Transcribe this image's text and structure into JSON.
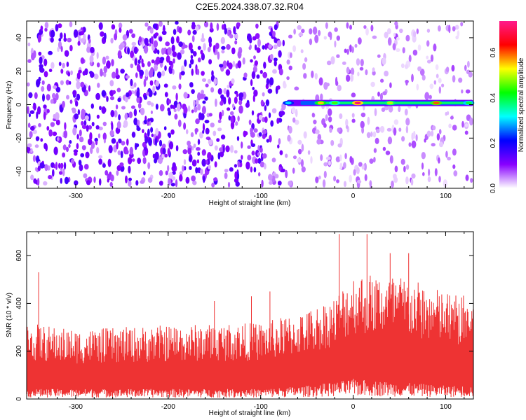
{
  "title": "C2E5.2024.338.07.32.R04",
  "chart_data": [
    {
      "type": "heatmap",
      "xlabel": "Height of straight line (km)",
      "ylabel": "Frequency (Hz)",
      "xlim": [
        -353,
        130
      ],
      "ylim": [
        -50,
        50
      ],
      "x_ticks": [
        -300,
        -200,
        -100,
        0,
        100
      ],
      "x_tick_labels": [
        "-300",
        "-200",
        "-100",
        "0",
        "100"
      ],
      "y_ticks": [
        -40,
        -20,
        0,
        20,
        40
      ],
      "y_tick_labels": [
        "-40",
        "-20",
        "0",
        "20",
        "40"
      ],
      "colorbar": {
        "label": "Normalized spectral amplitude",
        "range": [
          0,
          0.74
        ],
        "ticks": [
          0,
          0.2,
          0.4,
          0.6
        ],
        "tick_labels": [
          "0.0",
          "0.2",
          "0.4",
          "0.6"
        ],
        "colors": [
          "#ffffff",
          "#8800ff",
          "#0000ff",
          "#00ffff",
          "#00ff00",
          "#ffff00",
          "#ff0000",
          "#ff1a8c"
        ]
      },
      "noise": {
        "x_split": -75,
        "left_mean": 0.08,
        "right_mean": 0.04
      },
      "signal": {
        "frequency": 1,
        "start_x": -72,
        "peaks": [
          {
            "x": -70,
            "value": 0.3
          },
          {
            "x": -35,
            "value": 0.55
          },
          {
            "x": -20,
            "value": 0.45
          },
          {
            "x": 5,
            "value": 0.72
          },
          {
            "x": 40,
            "value": 0.5
          },
          {
            "x": 90,
            "value": 0.6
          },
          {
            "x": 125,
            "value": 0.4
          }
        ]
      }
    },
    {
      "type": "line",
      "xlabel": "Height of straight line (km)",
      "ylabel": "SNR (10 * v/v)",
      "xlim": [
        -353,
        130
      ],
      "ylim": [
        0,
        700
      ],
      "x_ticks": [
        -300,
        -200,
        -100,
        0,
        100
      ],
      "x_tick_labels": [
        "-300",
        "-200",
        "-100",
        "0",
        "100"
      ],
      "y_ticks": [
        0,
        200,
        400,
        600
      ],
      "y_tick_labels": [
        "0",
        "200",
        "400",
        "600"
      ],
      "color": "#ee3333",
      "envelope": [
        {
          "x": -353,
          "low": 30,
          "high": 320
        },
        {
          "x": -300,
          "low": 30,
          "high": 290
        },
        {
          "x": -200,
          "low": 30,
          "high": 310
        },
        {
          "x": -100,
          "low": 30,
          "high": 320
        },
        {
          "x": -50,
          "low": 40,
          "high": 370
        },
        {
          "x": -20,
          "low": 50,
          "high": 430
        },
        {
          "x": 0,
          "low": 60,
          "high": 530
        },
        {
          "x": 50,
          "low": 50,
          "high": 520
        },
        {
          "x": 100,
          "low": 40,
          "high": 450
        },
        {
          "x": 130,
          "low": 40,
          "high": 430
        }
      ],
      "spikes": [
        {
          "x": -340,
          "y": 530
        },
        {
          "x": -150,
          "y": 410
        },
        {
          "x": -110,
          "y": 430
        },
        {
          "x": -90,
          "y": 450
        },
        {
          "x": -15,
          "y": 690
        },
        {
          "x": 15,
          "y": 690
        },
        {
          "x": 40,
          "y": 610
        },
        {
          "x": 60,
          "y": 610
        }
      ]
    }
  ]
}
